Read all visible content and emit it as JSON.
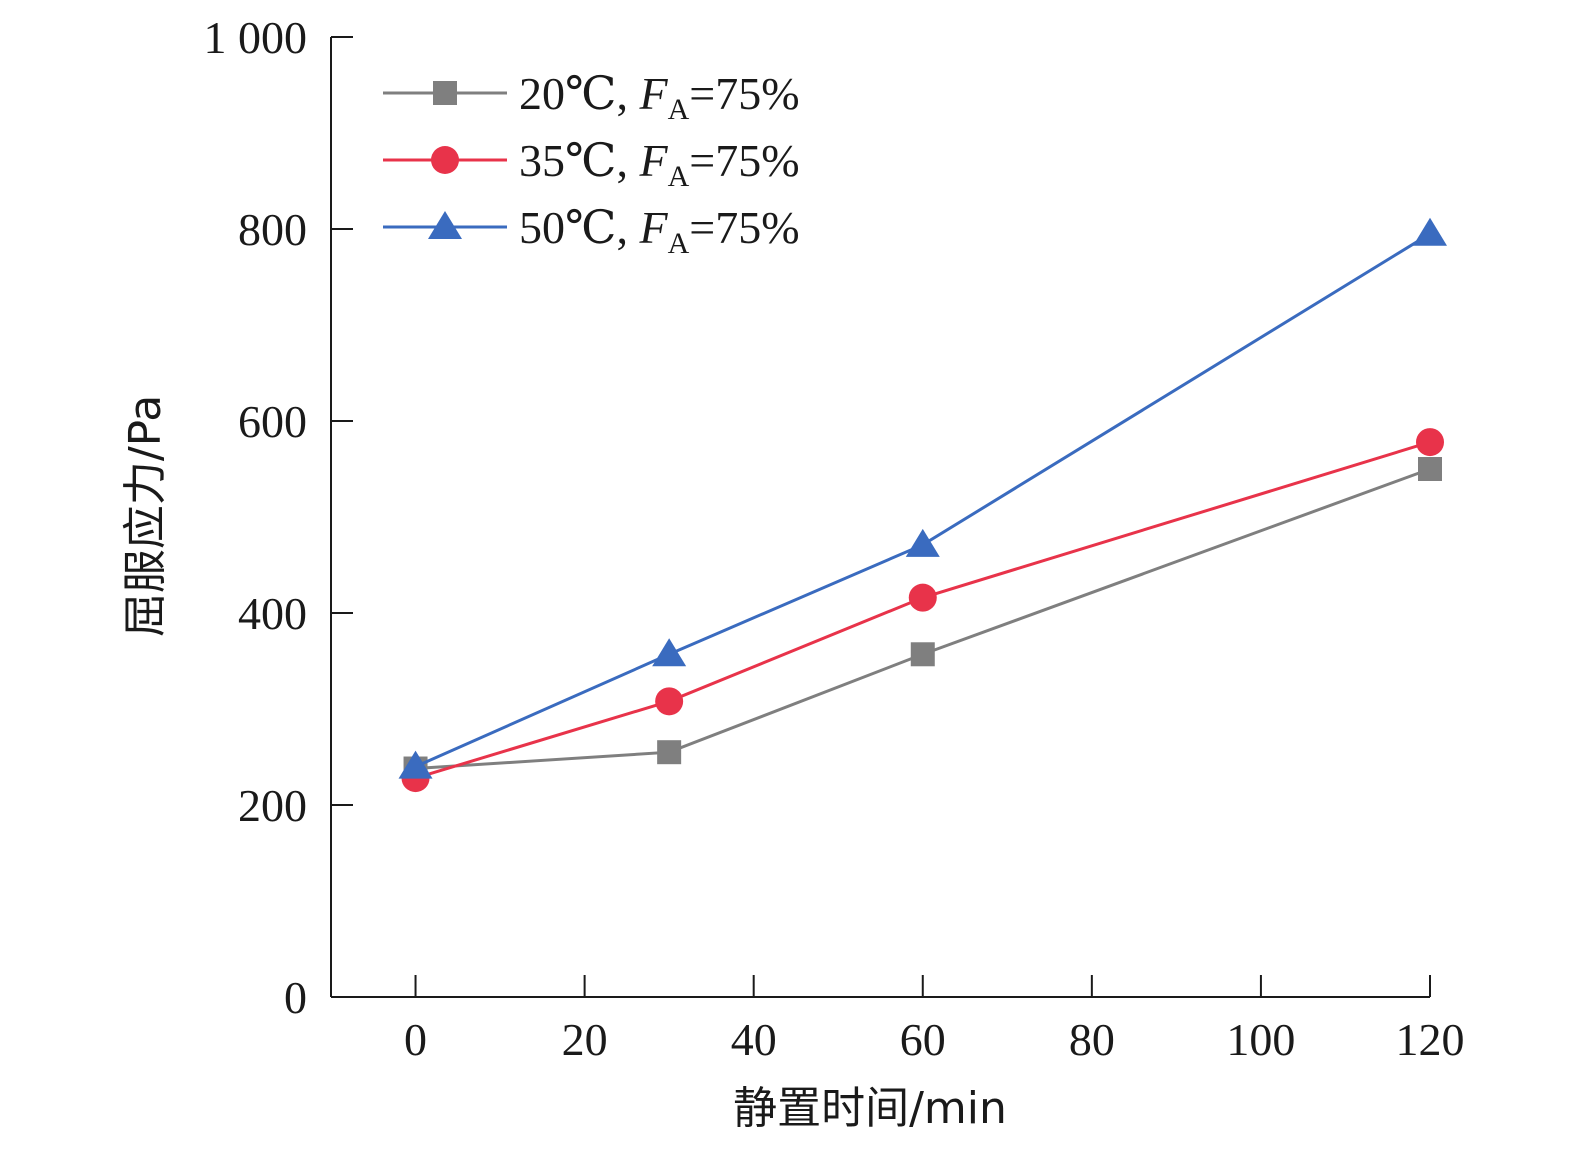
{
  "chart_data": {
    "type": "line",
    "xlabel": "静置时间/min",
    "ylabel": "屈服应力/Pa",
    "xlim": [
      -10,
      120
    ],
    "ylim": [
      0,
      1000
    ],
    "xticks": [
      0,
      20,
      40,
      60,
      80,
      100,
      120
    ],
    "yticks": [
      0,
      200,
      400,
      600,
      800,
      1000
    ],
    "ytick_labels": [
      "0",
      "200",
      "400",
      "600",
      "800",
      "1 000"
    ],
    "grid": false,
    "legend": {
      "placement": "top-left",
      "entries": [
        {
          "prefix": "20℃, ",
          "var": "F",
          "sub": "A",
          "suffix": "=75%"
        },
        {
          "prefix": "35℃, ",
          "var": "F",
          "sub": "A",
          "suffix": "=75%"
        },
        {
          "prefix": "50℃, ",
          "var": "F",
          "sub": "A",
          "suffix": "=75%"
        }
      ]
    },
    "series": [
      {
        "name": "20℃, FA=75%",
        "color": "#7f7f7f",
        "marker": "square",
        "x": [
          0,
          30,
          60,
          120
        ],
        "y": [
          238,
          255,
          357,
          550
        ]
      },
      {
        "name": "35℃, FA=75%",
        "color": "#e8334a",
        "marker": "circle",
        "x": [
          0,
          30,
          60,
          120
        ],
        "y": [
          228,
          308,
          416,
          578
        ]
      },
      {
        "name": "50℃, FA=75%",
        "color": "#3a6bbf",
        "marker": "triangle",
        "x": [
          0,
          30,
          60,
          120
        ],
        "y": [
          240,
          357,
          471,
          795
        ]
      }
    ]
  }
}
